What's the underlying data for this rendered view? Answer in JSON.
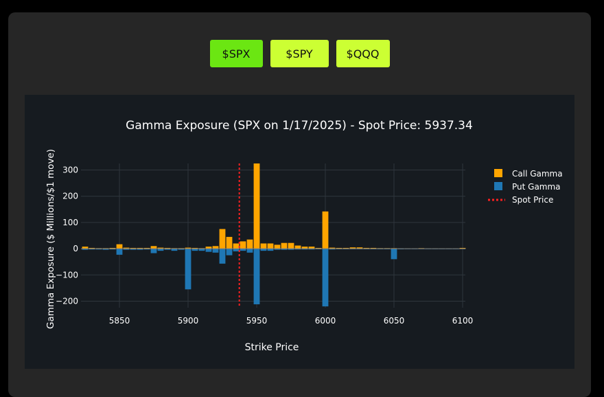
{
  "tickers": [
    {
      "label": "$SPX",
      "active": true
    },
    {
      "label": "$SPY",
      "active": false
    },
    {
      "label": "$QQQ",
      "active": false
    }
  ],
  "colors": {
    "call": "#ffa500",
    "put": "#1f77b4",
    "spot": "#ff2020",
    "active_button": "#6be612",
    "inactive_button": "#ccff33"
  },
  "chart_data": {
    "type": "bar",
    "title": "Gamma Exposure (SPX on 1/17/2025) - Spot Price: 5937.34",
    "xlabel": "Strike Price",
    "ylabel": "Gamma Exposure ($ Millions/$1 move)",
    "xlim": [
      5822,
      6102
    ],
    "ylim": [
      -225,
      325
    ],
    "xticks": [
      5850,
      5900,
      5950,
      6000,
      6050,
      6100
    ],
    "yticks": [
      -200,
      -100,
      0,
      100,
      200,
      300
    ],
    "legend": "right",
    "spot_price": 5937.34,
    "x": [
      5825,
      5830,
      5835,
      5840,
      5845,
      5850,
      5855,
      5860,
      5865,
      5870,
      5875,
      5880,
      5885,
      5890,
      5895,
      5900,
      5905,
      5910,
      5915,
      5920,
      5925,
      5930,
      5935,
      5940,
      5945,
      5950,
      5955,
      5960,
      5965,
      5970,
      5975,
      5980,
      5985,
      5990,
      5995,
      6000,
      6005,
      6010,
      6015,
      6020,
      6025,
      6030,
      6035,
      6040,
      6045,
      6050,
      6055,
      6060,
      6065,
      6070,
      6075,
      6080,
      6085,
      6090,
      6095,
      6100
    ],
    "series": [
      {
        "name": "Call Gamma",
        "values": [
          8,
          3,
          2,
          2,
          3,
          17,
          4,
          3,
          3,
          3,
          10,
          4,
          3,
          2,
          2,
          4,
          3,
          2,
          8,
          10,
          75,
          45,
          20,
          28,
          35,
          325,
          20,
          20,
          15,
          22,
          22,
          12,
          8,
          8,
          3,
          142,
          4,
          3,
          3,
          5,
          5,
          3,
          3,
          2,
          2,
          2,
          1,
          1,
          1,
          2,
          1,
          1,
          1,
          1,
          1,
          3
        ]
      },
      {
        "name": "Put Gamma",
        "values": [
          -4,
          -3,
          -3,
          -4,
          -3,
          -23,
          -4,
          -4,
          -4,
          -3,
          -17,
          -8,
          -4,
          -8,
          -4,
          -155,
          -8,
          -8,
          -12,
          -15,
          -57,
          -25,
          -10,
          -8,
          -15,
          -212,
          -8,
          -8,
          -4,
          -4,
          -4,
          -3,
          -3,
          -3,
          -2,
          -220,
          -3,
          -2,
          -2,
          -2,
          -2,
          -2,
          -2,
          -2,
          -2,
          -40,
          -2,
          -1,
          -1,
          -1,
          -1,
          -1,
          -1,
          -1,
          -1,
          -1
        ]
      },
      {
        "name": "Spot Price"
      }
    ]
  }
}
